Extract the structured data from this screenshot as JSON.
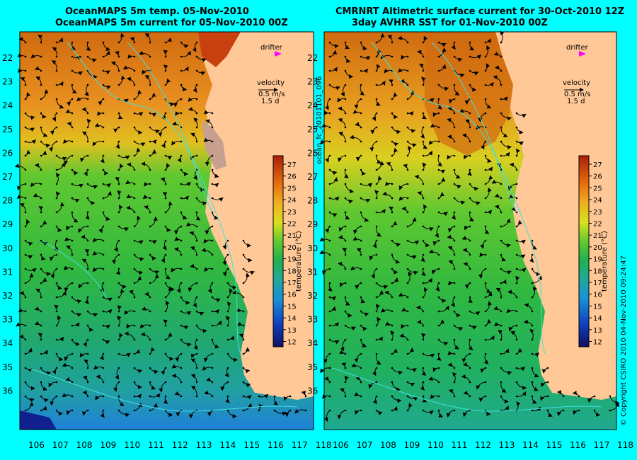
{
  "left_panel": {
    "title_line1": "OceanMAPS 5m temp. 05-Nov-2010",
    "title_line2": "OceanMAPS 5m current for 05-Nov-2010 00Z",
    "legend": {
      "drifter_label": "drifter",
      "velocity_label": "velocity",
      "speed_label": "0.5 m/s",
      "duration_label": "1.5 d"
    }
  },
  "right_panel": {
    "title_line1": "CMRNRT Altimetric surface current for 30-Oct-2010 12Z",
    "title_line2": "3day AVHRR SST for 01-Nov-2010 00Z",
    "legend": {
      "drifter_label": "drifter",
      "velocity_label": "velocity",
      "speed_label": "0.5 m/s",
      "duration_label": "1.5 d"
    }
  },
  "latitude_ticks": [
    "22",
    "23",
    "24",
    "25",
    "26",
    "27",
    "28",
    "29",
    "30",
    "31",
    "32",
    "33",
    "34",
    "35",
    "36"
  ],
  "longitude_ticks": [
    "106",
    "107",
    "108",
    "109",
    "110",
    "111",
    "112",
    "113",
    "114",
    "115",
    "116",
    "117",
    "118"
  ],
  "colorbar": {
    "label": "temperature (°C)",
    "ticks": [
      "27",
      "26",
      "25",
      "24",
      "23",
      "22",
      "21",
      "20",
      "19",
      "18",
      "17",
      "16",
      "15",
      "14",
      "13",
      "12"
    ],
    "colors": [
      "#a8200a",
      "#d04010",
      "#e86a10",
      "#f09020",
      "#f0b020",
      "#e8d020",
      "#c8e020",
      "#80d020",
      "#30c030",
      "#20b050",
      "#20a870",
      "#20a8a0",
      "#1890d8",
      "#1060e0",
      "#1030c0",
      "#101080"
    ]
  },
  "side_texts": {
    "run_id": "ocean_fc_20101101_096",
    "copyright": "© Copyright CSIRO 2010   04-Nov-2010 09:24:47"
  }
}
